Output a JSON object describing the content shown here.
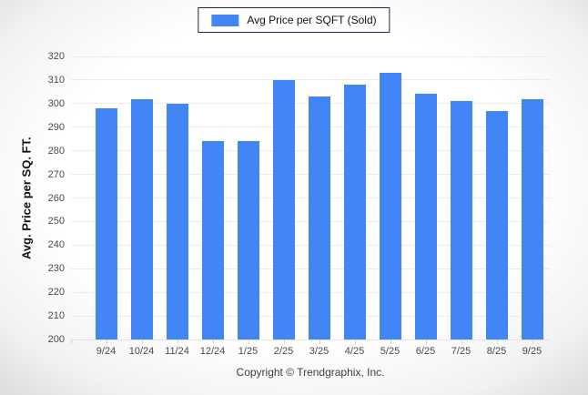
{
  "legend": {
    "label": "Avg Price per SQFT (Sold)",
    "swatch_color": "#4285f4"
  },
  "chart_data": {
    "type": "bar",
    "title": "",
    "categories": [
      "9/24",
      "10/24",
      "11/24",
      "12/24",
      "1/25",
      "2/25",
      "3/25",
      "4/25",
      "5/25",
      "6/25",
      "7/25",
      "8/25",
      "9/25"
    ],
    "values": [
      298,
      302,
      300,
      284,
      284,
      310,
      303,
      308,
      313,
      304,
      301,
      297,
      302
    ],
    "xlabel": "",
    "ylabel": "Avg. Price per SQ. FT.",
    "ylim": [
      200,
      320
    ],
    "ytick_step": 10,
    "yticks": [
      200,
      210,
      220,
      230,
      240,
      250,
      260,
      270,
      280,
      290,
      300,
      310,
      320
    ],
    "grid": true,
    "legend_position": "top-center",
    "bar_color": "#4285f4",
    "gridline_color": "#ececec"
  },
  "footer": {
    "copyright": "Copyright © Trendgraphix, Inc."
  }
}
